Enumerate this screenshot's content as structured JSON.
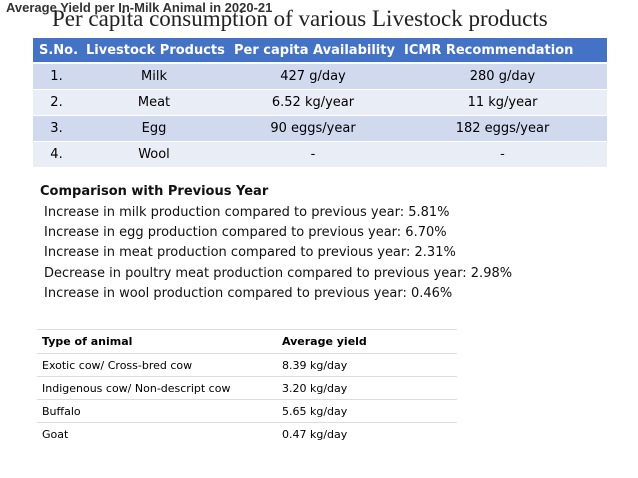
{
  "header": {
    "overlay_title": "Average Yield per In-Milk Animal in 2020-21",
    "title": "Per capita consumption of various Livestock products"
  },
  "table": {
    "columns": [
      "S.No.",
      "Livestock Products",
      "Per capita Availability",
      "ICMR Recommendation"
    ],
    "rows": [
      [
        "1.",
        "Milk",
        "427 g/day",
        "280 g/day"
      ],
      [
        "2.",
        "Meat",
        "6.52 kg/year",
        "11 kg/year"
      ],
      [
        "3.",
        "Egg",
        "90 eggs/year",
        "182 eggs/year"
      ],
      [
        "4.",
        "Wool",
        "-",
        "-"
      ]
    ]
  },
  "comparison": {
    "title": "Comparison with Previous Year",
    "lines": [
      "Increase in milk production compared to previous year: 5.81%",
      "Increase in egg production compared to previous year: 6.70%",
      "Increase in meat production compared to previous year: 2.31%",
      "Decrease in poultry meat production compared to previous year: 2.98%",
      "Increase in wool production compared to previous year: 0.46%"
    ]
  },
  "yield_table": {
    "columns": [
      "Type of animal",
      "Average yield"
    ],
    "rows": [
      [
        "Exotic cow/ Cross-bred cow",
        "8.39 kg/day"
      ],
      [
        "Indigenous cow/ Non-descript cow",
        "3.20 kg/day"
      ],
      [
        "Buffalo",
        "5.65 kg/day"
      ],
      [
        "Goat",
        "0.47 kg/day"
      ]
    ]
  }
}
